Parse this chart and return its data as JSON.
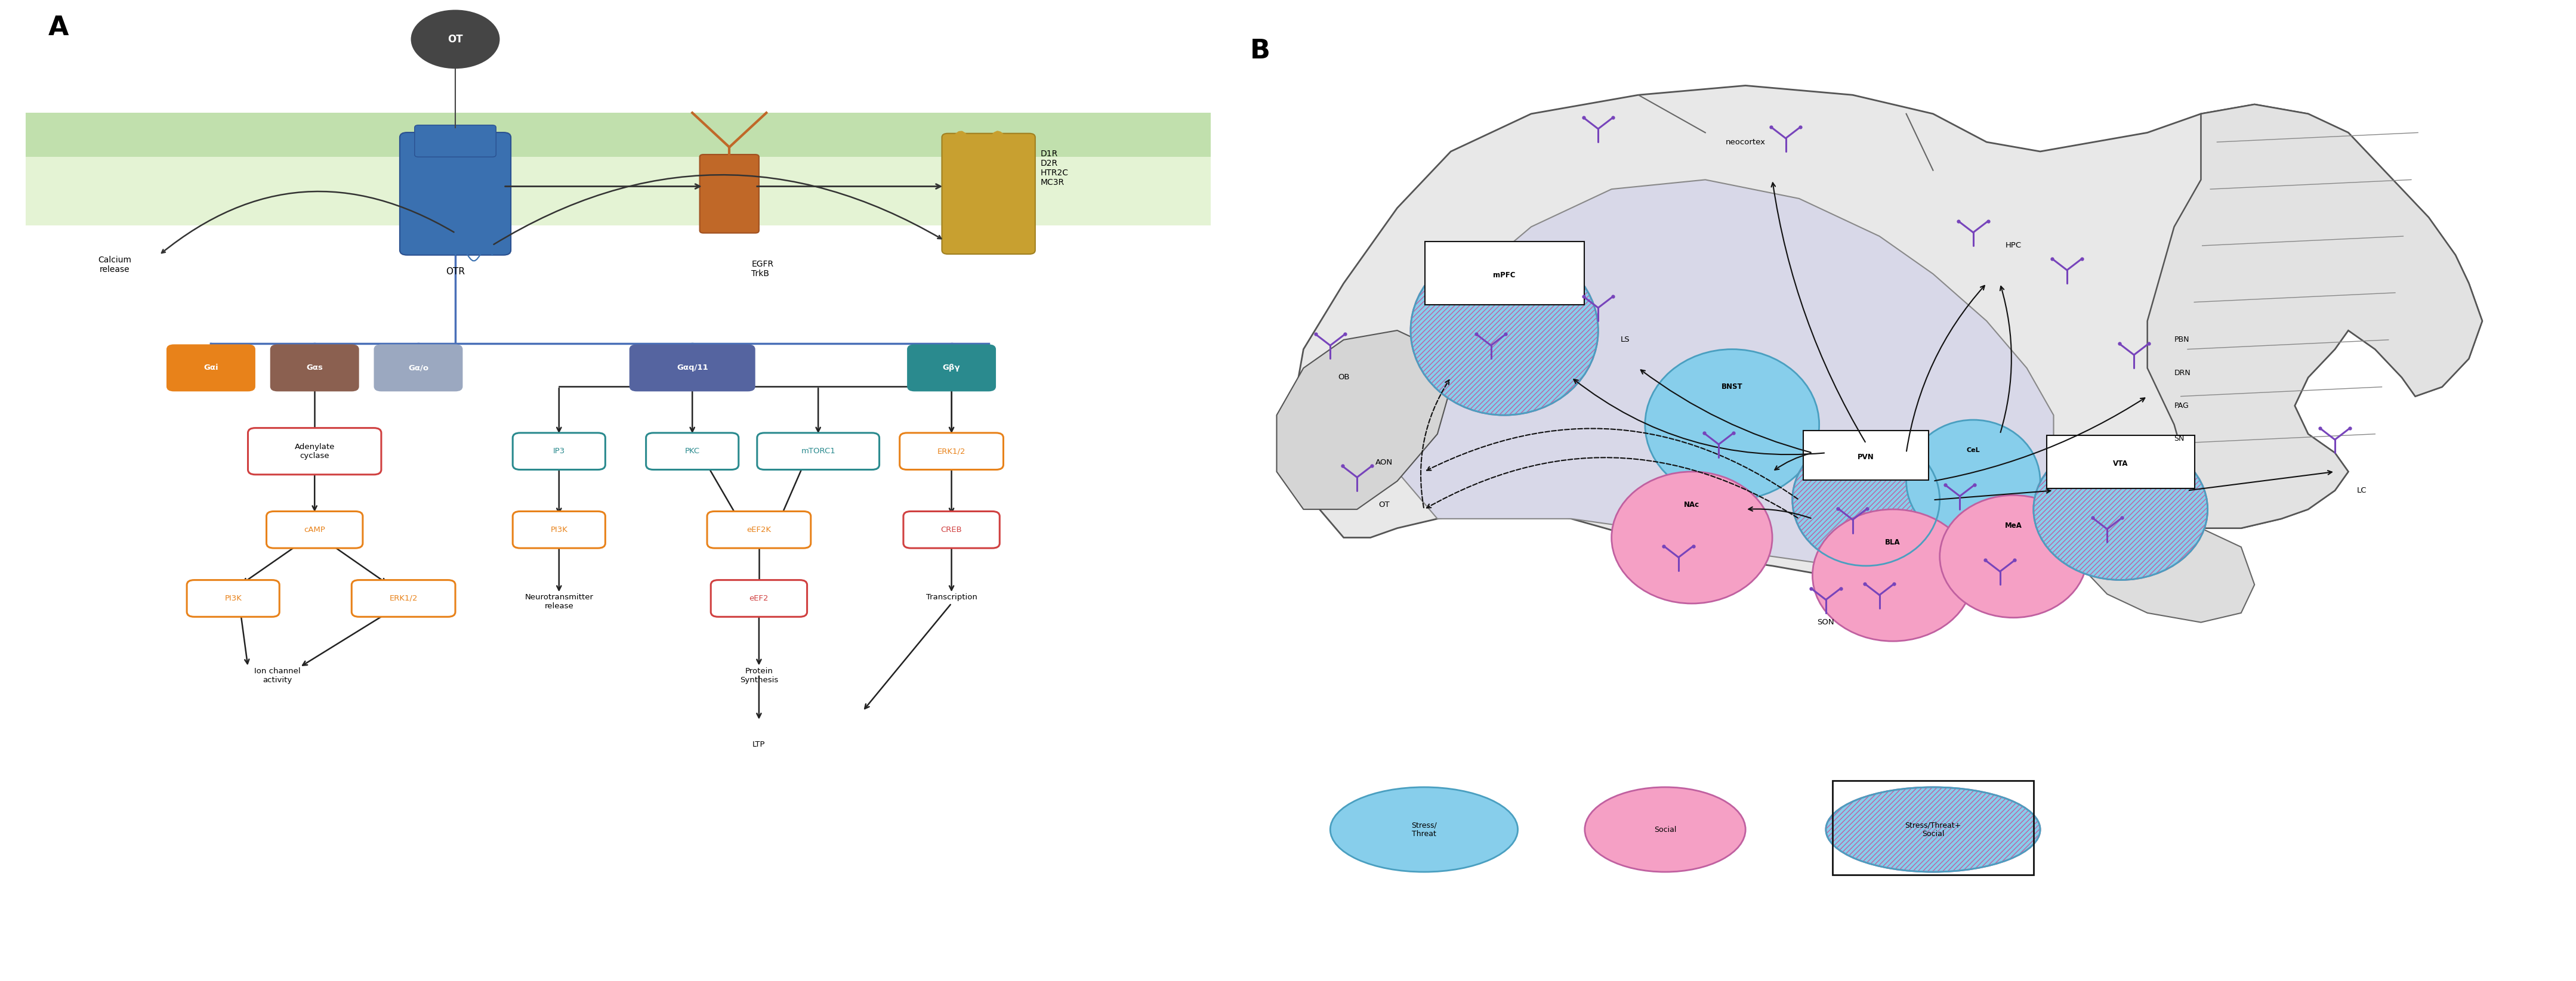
{
  "fig_width": 43.17,
  "fig_height": 16.45,
  "background": "#ffffff",
  "panel_A_label": "A",
  "panel_B_label": "B",
  "mem_dark_color": "#8ec86a",
  "mem_light_color": "#d6edbe",
  "g_proteins": [
    {
      "label": "Gαi",
      "color": "#e8821a",
      "x": 2.5
    },
    {
      "label": "Gαs",
      "color": "#8b6050",
      "x": 3.8
    },
    {
      "label": "Gα/o",
      "color": "#9ba8c0",
      "x": 5.1
    },
    {
      "label": "Gαq/11",
      "color": "#5564a0",
      "x": 9.0
    },
    {
      "label": "Gβγ",
      "color": "#2a8a8e",
      "x": 12.5
    }
  ],
  "colors": {
    "stress": "#87CEEB",
    "stress_edge": "#4a9fc0",
    "social": "#f0a0c0",
    "social_edge": "#c060a0",
    "stress_social_fill": "#87CEEB",
    "stress_social_edge": "#c060a0",
    "receptor_purple": "#7755bb",
    "arrow_dark": "#111111",
    "arrow_dashed": "#888888",
    "node_orange_border": "#e8821a",
    "node_red_border": "#d04040",
    "node_teal_border": "#2a8a8e",
    "node_blue_border": "#5564a0",
    "mem_dark": "#8ec86a",
    "mem_light": "#d6edbe",
    "otr_blue": "#3a6ea8",
    "egfr_orange": "#c87030",
    "dr_gold": "#c89030",
    "brain_outer": "#e5e5e5",
    "brain_inner": "#d8d8e5",
    "brain_edge": "#555555",
    "cereb": "#e8e8e8"
  }
}
